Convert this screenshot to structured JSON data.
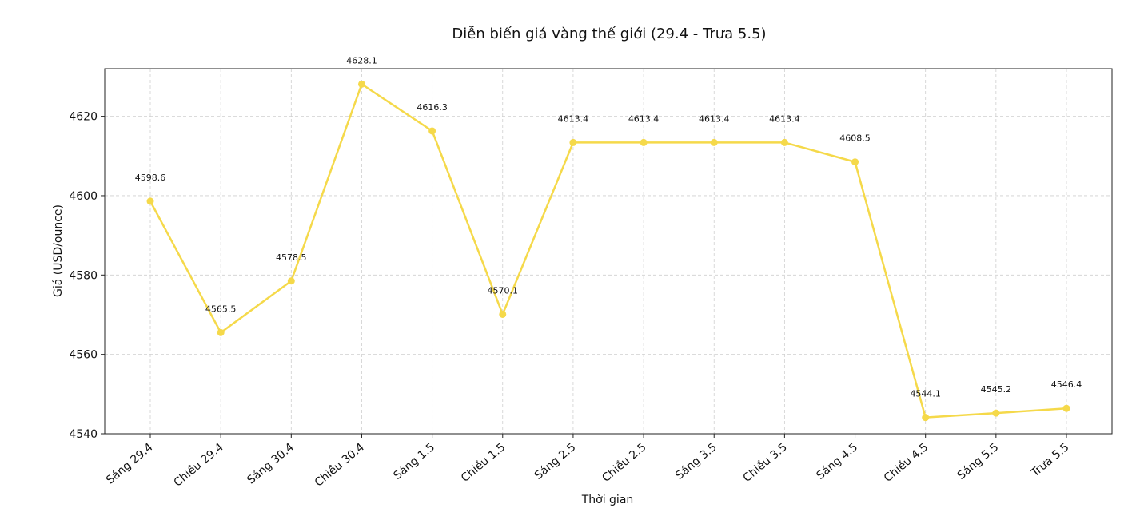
{
  "chart_data": {
    "type": "line",
    "title": "Diễn biến giá vàng thế giới (29.4 - Trưa 5.5)",
    "xlabel": "Thời gian",
    "ylabel": "Giá (USD/ounce)",
    "categories": [
      "Sáng 29.4",
      "Chiều 29.4",
      "Sáng 30.4",
      "Chiều 30.4",
      "Sáng 1.5",
      "Chiều 1.5",
      "Sáng 2.5",
      "Chiều 2.5",
      "Sáng 3.5",
      "Chiều 3.5",
      "Sáng 4.5",
      "Chiều 4.5",
      "Sáng 5.5",
      "Trưa 5.5"
    ],
    "series": [
      {
        "values": [
          4598.6,
          4565.5,
          4578.5,
          4628.1,
          4616.3,
          4570.1,
          4613.4,
          4613.4,
          4613.4,
          4613.4,
          4608.5,
          4544.1,
          4545.2,
          4546.4
        ],
        "labels": [
          "4598.6",
          "4565.5",
          "4578.5",
          "4628.1",
          "4616.3",
          "4570.1",
          "4613.4",
          "4613.4",
          "4613.4",
          "4613.4",
          "4608.5",
          "4544.1",
          "4545.2",
          "4546.4"
        ],
        "color": "#F5D94A"
      }
    ],
    "ylim": [
      4540,
      4632
    ],
    "yticks": [
      4540,
      4560,
      4580,
      4600,
      4620
    ],
    "ytick_labels": [
      "4540",
      "4560",
      "4580",
      "4600",
      "4620"
    ],
    "grid": true
  }
}
